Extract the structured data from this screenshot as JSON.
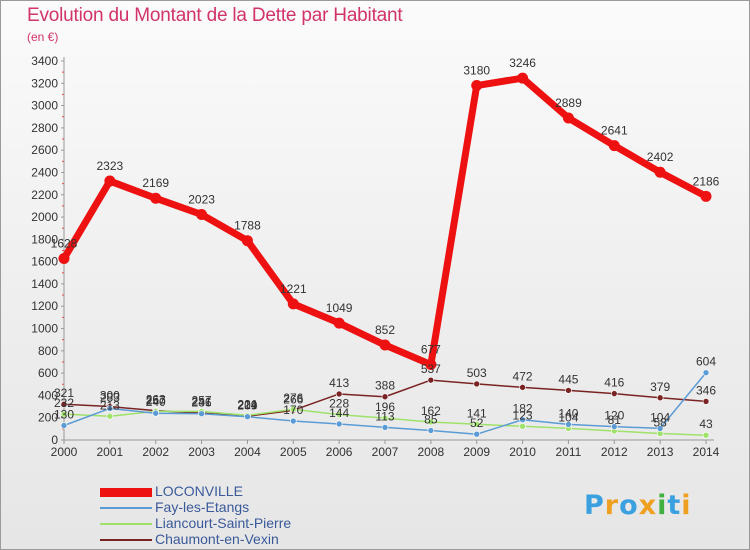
{
  "header": {
    "title": "Evolution du Montant de la Dette par Habitant",
    "unit": "(en €)"
  },
  "logo": {
    "letters": [
      "P",
      "r",
      "o",
      "x",
      "i",
      "t",
      "i"
    ],
    "colors": [
      "#3aa0e0",
      "#f0a020",
      "#3aa0e0",
      "#f0a020",
      "#40b040",
      "#3aa0e0",
      "#f0a020"
    ]
  },
  "chart_data": {
    "type": "line",
    "x": [
      2000,
      2001,
      2002,
      2003,
      2004,
      2005,
      2006,
      2007,
      2008,
      2009,
      2010,
      2011,
      2012,
      2013,
      2014
    ],
    "xlim": [
      2000,
      2014
    ],
    "ylim": [
      0,
      3400
    ],
    "yticks": [
      0,
      200,
      400,
      600,
      800,
      1000,
      1200,
      1400,
      1600,
      1800,
      2000,
      2200,
      2400,
      2600,
      2800,
      3000,
      3200,
      3400
    ],
    "grid": false,
    "legend_position": "bottom-left",
    "series": [
      {
        "name": "LOCONVILLE",
        "color": "#ee1111",
        "values": [
          1628,
          2323,
          2169,
          2023,
          1788,
          1221,
          1049,
          852,
          677,
          3180,
          3246,
          2889,
          2641,
          2402,
          2186
        ]
      },
      {
        "name": "Fay-les-Etangs",
        "color": "#5b9bd5",
        "values": [
          130,
          283,
          240,
          236,
          209,
          170,
          144,
          113,
          85,
          52,
          182,
          140,
          120,
          104,
          604
        ]
      },
      {
        "name": "Liancourt-Saint-Pierre",
        "color": "#9fe26a",
        "values": [
          232,
          213,
          257,
          257,
          221,
          276,
          228,
          196,
          162,
          141,
          123,
          104,
          81,
          58,
          43
        ]
      },
      {
        "name": "Chaumont-en-Vexin",
        "color": "#7a2323",
        "values": [
          321,
          300,
          263,
          241,
          214,
          266,
          413,
          388,
          537,
          503,
          472,
          445,
          416,
          379,
          346
        ]
      }
    ]
  }
}
